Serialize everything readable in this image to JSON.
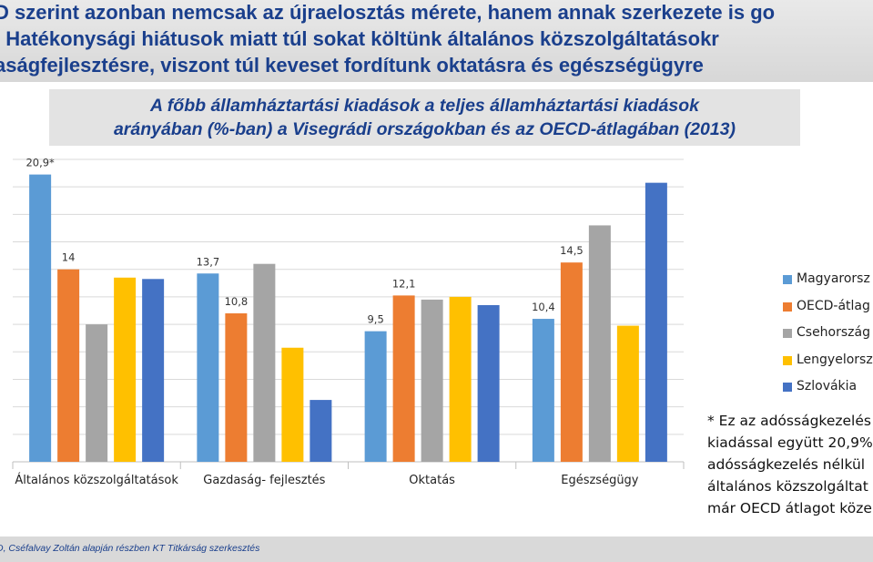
{
  "header": {
    "lines": [
      "D szerint azonban nemcsak az újraelosztás mérete, hanem annak szerkezete is go",
      ". Hatékonysági hiátusok miatt túl sokat költünk általános közszolgáltatásokr",
      "aságfejlesztésre, viszont túl keveset fordítunk oktatásra és egészségügyre"
    ]
  },
  "chart_title": {
    "line1": "A főbb államháztartási kiadások a teljes államháztartási kiadások",
    "line2": "arányában (%-ban) a Visegrádi országokban és az OECD-átlagában (2013)"
  },
  "chart_data": {
    "type": "bar",
    "title": "A főbb államháztartási kiadások a teljes államháztartási kiadások arányában (%-ban) a Visegrádi országokban és az OECD-átlagában (2013)",
    "categories": [
      "Általános  közszolgáltatások",
      "Gazdaság- fejlesztés",
      "Oktatás",
      "Egészségügy"
    ],
    "series": [
      {
        "name": "Magyarorsz",
        "color": "#5b9bd5",
        "values": [
          20.9,
          13.7,
          9.5,
          10.4
        ],
        "labels": [
          "20,9*",
          "13,7",
          "9,5",
          "10,4"
        ]
      },
      {
        "name": "OECD-átlag",
        "color": "#ed7d31",
        "values": [
          14.0,
          10.8,
          12.1,
          14.5
        ],
        "labels": [
          "14",
          "10,8",
          "12,1",
          "14,5"
        ]
      },
      {
        "name": "Csehország",
        "color": "#a5a5a5",
        "values": [
          10.0,
          14.4,
          11.8,
          17.2
        ],
        "labels": []
      },
      {
        "name": "Lengyelorsz",
        "color": "#ffc000",
        "values": [
          13.4,
          8.3,
          12.0,
          9.9
        ],
        "labels": []
      },
      {
        "name": "Szlovákia",
        "color": "#4472c4",
        "values": [
          13.3,
          4.5,
          11.4,
          20.3
        ],
        "labels": []
      }
    ],
    "ylim": [
      0,
      22
    ],
    "grid": true,
    "legend": "right"
  },
  "note": {
    "lines": [
      "* Ez az adósságkezelés",
      "kiadással együtt 20,9%",
      "adósságkezelés nélkül",
      "általános közszolgáltat",
      "már OECD átlagot köze"
    ]
  },
  "footer": {
    "source": "D, Cséfalvay Zoltán alapján részben KT Titkárság szerkesztés"
  }
}
